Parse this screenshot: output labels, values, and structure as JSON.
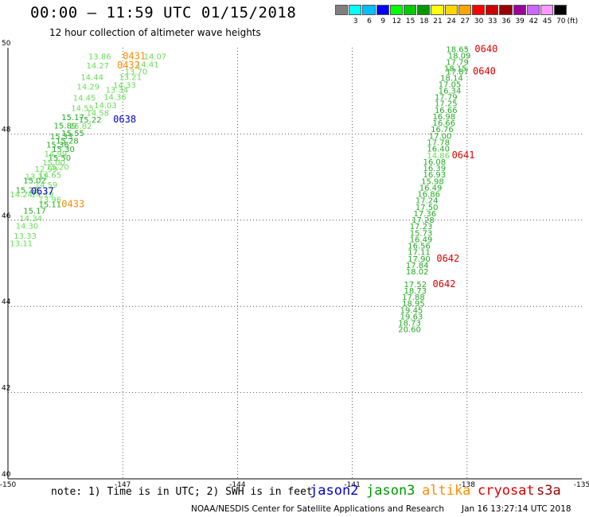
{
  "header": {
    "title": "00:00 — 11:59 UTC 01/15/2018",
    "subtitle": "12 hour collection of altimeter wave heights"
  },
  "color_scale": {
    "unit": "(ft)",
    "items": [
      {
        "label": "",
        "color": "#7f7f7f"
      },
      {
        "label": "3",
        "color": "#00ffff"
      },
      {
        "label": "6",
        "color": "#00bfff"
      },
      {
        "label": "9",
        "color": "#0000ff"
      },
      {
        "label": "12",
        "color": "#00ff00"
      },
      {
        "label": "15",
        "color": "#00cc00"
      },
      {
        "label": "18",
        "color": "#009900"
      },
      {
        "label": "21",
        "color": "#ffff00"
      },
      {
        "label": "24",
        "color": "#ffd700"
      },
      {
        "label": "27",
        "color": "#ffa500"
      },
      {
        "label": "30",
        "color": "#ff0000"
      },
      {
        "label": "33",
        "color": "#cc0000"
      },
      {
        "label": "36",
        "color": "#990000"
      },
      {
        "label": "39",
        "color": "#990099"
      },
      {
        "label": "42",
        "color": "#cc66ff"
      },
      {
        "label": "45",
        "color": "#ff99ff"
      },
      {
        "label": "70",
        "color": "#000000"
      }
    ]
  },
  "axes": {
    "lon_ticks": [
      "-150",
      "-147",
      "-144",
      "-141",
      "-138",
      "-135"
    ],
    "lat_ticks": [
      "50",
      "48",
      "46",
      "44",
      "42",
      "40"
    ],
    "lon_range": [
      -150,
      -135
    ],
    "lat_range": [
      40,
      50
    ]
  },
  "map_data": {
    "west_track": [
      {
        "lat": 49.73,
        "lon": -147.9,
        "v": "13.86",
        "c": "#66dd55"
      },
      {
        "lat": 49.73,
        "lon": -146.45,
        "v": "14.07",
        "c": "#66dd55"
      },
      {
        "lat": 49.55,
        "lon": -146.65,
        "v": "14.41",
        "c": "#66dd55"
      },
      {
        "lat": 49.52,
        "lon": -147.95,
        "v": "14.27",
        "c": "#66dd55"
      },
      {
        "lat": 49.38,
        "lon": -146.95,
        "v": "13.70",
        "c": "#66dd55"
      },
      {
        "lat": 49.25,
        "lon": -147.1,
        "v": "13.21",
        "c": "#66dd55"
      },
      {
        "lat": 49.25,
        "lon": -148.1,
        "v": "14.44",
        "c": "#66dd55"
      },
      {
        "lat": 49.07,
        "lon": -147.25,
        "v": "14.33",
        "c": "#66dd55"
      },
      {
        "lat": 48.96,
        "lon": -147.45,
        "v": "13.34",
        "c": "#66dd55"
      },
      {
        "lat": 49.03,
        "lon": -148.2,
        "v": "14.29",
        "c": "#66dd55"
      },
      {
        "lat": 48.79,
        "lon": -147.5,
        "v": "14.36",
        "c": "#66dd55"
      },
      {
        "lat": 48.77,
        "lon": -148.3,
        "v": "14.45",
        "c": "#66dd55"
      },
      {
        "lat": 48.6,
        "lon": -147.75,
        "v": "14.03",
        "c": "#66dd55"
      },
      {
        "lat": 48.53,
        "lon": -148.35,
        "v": "14.55",
        "c": "#66dd55"
      },
      {
        "lat": 48.42,
        "lon": -147.95,
        "v": "14.58",
        "c": "#66dd55"
      },
      {
        "lat": 48.32,
        "lon": -148.6,
        "v": "15.17",
        "c": "#22aa22"
      },
      {
        "lat": 48.27,
        "lon": -148.15,
        "v": "15.22",
        "c": "#22aa22"
      },
      {
        "lat": 48.13,
        "lon": -148.8,
        "v": "15.89",
        "c": "#22aa22"
      },
      {
        "lat": 48.12,
        "lon": -148.4,
        "v": "15.82",
        "c": "#66dd55"
      },
      {
        "lat": 47.95,
        "lon": -148.6,
        "v": "15.55",
        "c": "#22aa22"
      },
      {
        "lat": 47.88,
        "lon": -148.9,
        "v": "15.33",
        "c": "#22aa22"
      },
      {
        "lat": 47.78,
        "lon": -148.75,
        "v": "15.28",
        "c": "#22aa22"
      },
      {
        "lat": 47.68,
        "lon": -149.0,
        "v": "15.36",
        "c": "#22aa22"
      },
      {
        "lat": 47.58,
        "lon": -148.85,
        "v": "15.30",
        "c": "#22aa22"
      },
      {
        "lat": 47.47,
        "lon": -149.05,
        "v": "14.99",
        "c": "#66dd55"
      },
      {
        "lat": 47.38,
        "lon": -148.95,
        "v": "15.50",
        "c": "#22aa22"
      },
      {
        "lat": 47.27,
        "lon": -149.1,
        "v": "15.00",
        "c": "#66dd55"
      },
      {
        "lat": 47.17,
        "lon": -149.0,
        "v": "15.20",
        "c": "#66dd55"
      },
      {
        "lat": 47.12,
        "lon": -149.3,
        "v": "12.99",
        "c": "#66dd55"
      },
      {
        "lat": 46.98,
        "lon": -149.2,
        "v": "14.65",
        "c": "#66dd55"
      },
      {
        "lat": 46.95,
        "lon": -149.55,
        "v": "13.11",
        "c": "#66dd55"
      },
      {
        "lat": 46.85,
        "lon": -149.6,
        "v": "15.02",
        "c": "#22aa22"
      },
      {
        "lat": 46.75,
        "lon": -149.3,
        "v": "14.59",
        "c": "#66dd55"
      },
      {
        "lat": 46.63,
        "lon": -149.8,
        "v": "15.22",
        "c": "#22aa22"
      },
      {
        "lat": 46.53,
        "lon": -149.95,
        "v": "14.24",
        "c": "#66dd55"
      },
      {
        "lat": 46.53,
        "lon": -149.4,
        "v": "14.19",
        "c": "#66dd55"
      },
      {
        "lat": 46.41,
        "lon": -149.2,
        "v": "13.96",
        "c": "#66dd55"
      },
      {
        "lat": 46.3,
        "lon": -149.2,
        "v": "15.11",
        "c": "#22aa22"
      },
      {
        "lat": 46.15,
        "lon": -149.6,
        "v": "15.17",
        "c": "#22aa22"
      },
      {
        "lat": 45.98,
        "lon": -149.7,
        "v": "14.34",
        "c": "#66dd55"
      },
      {
        "lat": 45.8,
        "lon": -149.8,
        "v": "14.30",
        "c": "#66dd55"
      },
      {
        "lat": 45.57,
        "lon": -149.85,
        "v": "13.33",
        "c": "#66dd55"
      },
      {
        "lat": 45.4,
        "lon": -149.95,
        "v": "13.11",
        "c": "#66dd55"
      }
    ],
    "east_track": [
      {
        "lat": 49.9,
        "lon": -138.55,
        "v": "18.65",
        "c": "#22aa22"
      },
      {
        "lat": 49.75,
        "lon": -138.5,
        "v": "18.09",
        "c": "#22aa22"
      },
      {
        "lat": 49.6,
        "lon": -138.55,
        "v": "17.79",
        "c": "#22aa22"
      },
      {
        "lat": 49.46,
        "lon": -138.6,
        "v": "18.15",
        "c": "#22aa22"
      },
      {
        "lat": 49.38,
        "lon": -138.55,
        "v": "17.87",
        "c": "#22aa22"
      },
      {
        "lat": 49.23,
        "lon": -138.7,
        "v": "18.14",
        "c": "#22aa22"
      },
      {
        "lat": 49.09,
        "lon": -138.75,
        "v": "17.05",
        "c": "#22aa22"
      },
      {
        "lat": 48.94,
        "lon": -138.75,
        "v": "16.34",
        "c": "#22aa22"
      },
      {
        "lat": 48.79,
        "lon": -138.85,
        "v": "17.79",
        "c": "#22aa22"
      },
      {
        "lat": 48.64,
        "lon": -138.85,
        "v": "17.25",
        "c": "#22aa22"
      },
      {
        "lat": 48.49,
        "lon": -138.85,
        "v": "16.66",
        "c": "#22aa22"
      },
      {
        "lat": 48.34,
        "lon": -138.9,
        "v": "16.98",
        "c": "#22aa22"
      },
      {
        "lat": 48.19,
        "lon": -138.9,
        "v": "16.66",
        "c": "#22aa22"
      },
      {
        "lat": 48.04,
        "lon": -138.95,
        "v": "16.76",
        "c": "#22aa22"
      },
      {
        "lat": 47.89,
        "lon": -139.0,
        "v": "17.00",
        "c": "#22aa22"
      },
      {
        "lat": 47.74,
        "lon": -139.05,
        "v": "17.78",
        "c": "#22aa22"
      },
      {
        "lat": 47.59,
        "lon": -139.05,
        "v": "16.40",
        "c": "#22aa22"
      },
      {
        "lat": 47.44,
        "lon": -139.05,
        "v": "14.86",
        "c": "#66dd55"
      },
      {
        "lat": 47.29,
        "lon": -139.15,
        "v": "16.08",
        "c": "#22aa22"
      },
      {
        "lat": 47.14,
        "lon": -139.15,
        "v": "16.39",
        "c": "#22aa22"
      },
      {
        "lat": 46.99,
        "lon": -139.15,
        "v": "16.93",
        "c": "#22aa22"
      },
      {
        "lat": 46.84,
        "lon": -139.2,
        "v": "15.98",
        "c": "#22aa22"
      },
      {
        "lat": 46.69,
        "lon": -139.25,
        "v": "16.49",
        "c": "#22aa22"
      },
      {
        "lat": 46.54,
        "lon": -139.3,
        "v": "16.86",
        "c": "#22aa22"
      },
      {
        "lat": 46.39,
        "lon": -139.35,
        "v": "17.24",
        "c": "#22aa22"
      },
      {
        "lat": 46.24,
        "lon": -139.35,
        "v": "17.50",
        "c": "#22aa22"
      },
      {
        "lat": 46.09,
        "lon": -139.4,
        "v": "17.36",
        "c": "#22aa22"
      },
      {
        "lat": 45.94,
        "lon": -139.45,
        "v": "17.28",
        "c": "#22aa22"
      },
      {
        "lat": 45.79,
        "lon": -139.5,
        "v": "17.23",
        "c": "#22aa22"
      },
      {
        "lat": 45.64,
        "lon": -139.5,
        "v": "15.73",
        "c": "#22aa22"
      },
      {
        "lat": 45.49,
        "lon": -139.5,
        "v": "16.49",
        "c": "#22aa22"
      },
      {
        "lat": 45.34,
        "lon": -139.55,
        "v": "16.56",
        "c": "#22aa22"
      },
      {
        "lat": 45.19,
        "lon": -139.55,
        "v": "17.11",
        "c": "#22aa22"
      },
      {
        "lat": 45.04,
        "lon": -139.55,
        "v": "17.90",
        "c": "#22aa22"
      },
      {
        "lat": 44.89,
        "lon": -139.6,
        "v": "17.84",
        "c": "#22aa22"
      },
      {
        "lat": 44.74,
        "lon": -139.6,
        "v": "18.02",
        "c": "#22aa22"
      },
      {
        "lat": 44.45,
        "lon": -139.65,
        "v": "17.52",
        "c": "#22aa22"
      },
      {
        "lat": 44.3,
        "lon": -139.65,
        "v": "18.73",
        "c": "#22aa22"
      },
      {
        "lat": 44.15,
        "lon": -139.7,
        "v": "17.88",
        "c": "#22aa22"
      },
      {
        "lat": 44.0,
        "lon": -139.7,
        "v": "18.95",
        "c": "#22aa22"
      },
      {
        "lat": 43.85,
        "lon": -139.75,
        "v": "19.45",
        "c": "#22aa22"
      },
      {
        "lat": 43.7,
        "lon": -139.75,
        "v": "19.63",
        "c": "#22aa22"
      },
      {
        "lat": 43.55,
        "lon": -139.8,
        "v": "18.73",
        "c": "#22aa22"
      },
      {
        "lat": 43.4,
        "lon": -139.8,
        "v": "20.60",
        "c": "#22aa22"
      }
    ],
    "pass_times": [
      {
        "lat": 49.73,
        "lon": -147.0,
        "t": "0431",
        "c": "#ff8c00"
      },
      {
        "lat": 49.52,
        "lon": -147.15,
        "t": "0432",
        "c": "#ff8c00"
      },
      {
        "lat": 48.27,
        "lon": -147.25,
        "t": "0638",
        "c": "#0000cc"
      },
      {
        "lat": 46.6,
        "lon": -149.4,
        "t": "0637",
        "c": "#0000cc"
      },
      {
        "lat": 46.3,
        "lon": -148.6,
        "t": "0433",
        "c": "#ff8c00"
      },
      {
        "lat": 49.9,
        "lon": -137.8,
        "t": "0640",
        "c": "#dd0000"
      },
      {
        "lat": 49.38,
        "lon": -137.85,
        "t": "0640",
        "c": "#dd0000"
      },
      {
        "lat": 47.44,
        "lon": -138.4,
        "t": "0641",
        "c": "#dd0000"
      },
      {
        "lat": 45.04,
        "lon": -138.8,
        "t": "0642",
        "c": "#dd0000"
      },
      {
        "lat": 44.45,
        "lon": -138.9,
        "t": "0642",
        "c": "#dd0000"
      }
    ]
  },
  "footer": {
    "note": "note: 1) Time is in UTC; 2) SWH is in feet",
    "satellites": [
      {
        "name": "jason2",
        "color": "#0000cc"
      },
      {
        "name": "jason3",
        "color": "#009900"
      },
      {
        "name": "altika",
        "color": "#ff8c00"
      },
      {
        "name": "cryosat",
        "color": "#dd0000"
      },
      {
        "name": "s3a",
        "color": "#990000"
      }
    ],
    "credit": "NOAA/NESDIS Center for Satellite Applications and Research",
    "timestamp": "Jan 16 13:27:14 UTC 2018"
  }
}
